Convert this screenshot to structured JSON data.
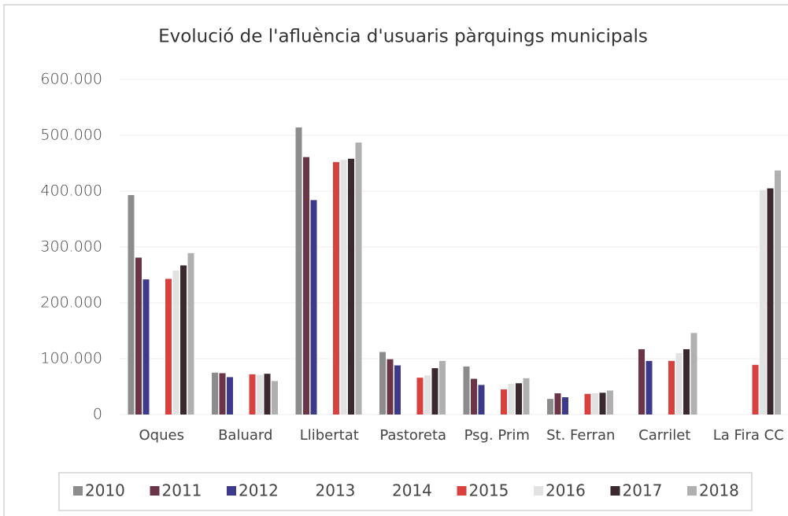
{
  "chart_data": {
    "type": "bar",
    "title": "Evolució de l'afluència d'usuaris pàrquings municipals",
    "categories": [
      "Oques",
      "Baluard",
      "Llibertat",
      "Pastoreta",
      "Psg. Prim",
      "St. Ferran",
      "Carrilet",
      "La Fira CC"
    ],
    "series": [
      {
        "name": "2010",
        "color": "#8c8c8c",
        "values": [
          393000,
          75000,
          514000,
          112000,
          86000,
          28000,
          null,
          null
        ]
      },
      {
        "name": "2011",
        "color": "#6b3447",
        "values": [
          281000,
          74000,
          461000,
          99000,
          64000,
          38000,
          117000,
          null
        ]
      },
      {
        "name": "2012",
        "color": "#3e3a8a",
        "values": [
          242000,
          67000,
          384000,
          88000,
          53000,
          31000,
          96000,
          null
        ]
      },
      {
        "name": "2013",
        "color": "#ffffff",
        "values": [
          null,
          null,
          null,
          null,
          null,
          null,
          null,
          null
        ]
      },
      {
        "name": "2014",
        "color": "#ffffff",
        "values": [
          null,
          null,
          null,
          null,
          null,
          null,
          null,
          null
        ]
      },
      {
        "name": "2015",
        "color": "#d9413f",
        "values": [
          243000,
          72000,
          452000,
          66000,
          45000,
          37000,
          96000,
          89000
        ]
      },
      {
        "name": "2016",
        "color": "#e2e2e2",
        "values": [
          258000,
          71000,
          456000,
          70000,
          55000,
          38000,
          110000,
          402000
        ]
      },
      {
        "name": "2017",
        "color": "#3a2a2e",
        "values": [
          267000,
          73000,
          458000,
          83000,
          56000,
          39000,
          117000,
          405000
        ]
      },
      {
        "name": "2018",
        "color": "#b0b0b0",
        "values": [
          289000,
          60000,
          487000,
          96000,
          65000,
          43000,
          146000,
          437000
        ]
      }
    ],
    "ylim": [
      0,
      600000
    ],
    "yticks": [
      0,
      {
        "value": 100000,
        "label": "100.000"
      },
      {
        "value": 200000,
        "label": "200.000"
      },
      {
        "value": 300000,
        "label": "300.000"
      },
      {
        "value": 400000,
        "label": "400.000"
      },
      {
        "value": 500000,
        "label": "500.000"
      },
      {
        "value": 600000,
        "label": "600.000"
      }
    ],
    "grid": true,
    "legend": "bottom"
  }
}
